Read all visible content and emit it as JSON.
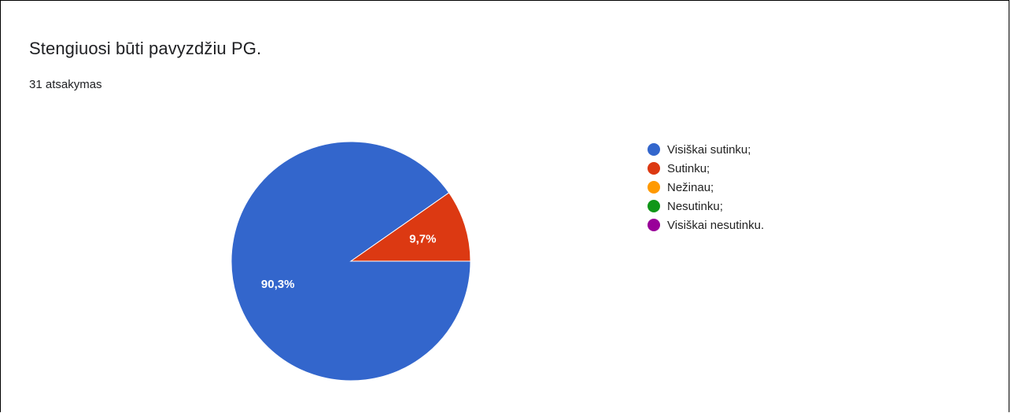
{
  "question": {
    "title": "Stengiuosi būti pavyzdžiu PG.",
    "responses": "31 atsakymas"
  },
  "chart_data": {
    "type": "pie",
    "title": "Stengiuosi būti pavyzdžiu PG.",
    "slices": [
      {
        "label": "Visiškai sutinku;",
        "percent": 90.3,
        "display": "90,3%",
        "color": "#3366cc"
      },
      {
        "label": "Sutinku;",
        "percent": 9.7,
        "display": "9,7%",
        "color": "#dc3912"
      },
      {
        "label": "Nežinau;",
        "percent": 0,
        "display": "",
        "color": "#ff9900"
      },
      {
        "label": "Nesutinku;",
        "percent": 0,
        "display": "",
        "color": "#109618"
      },
      {
        "label": "Visiškai nesutinku.",
        "percent": 0,
        "display": "",
        "color": "#990099"
      }
    ],
    "legend_position": "right"
  }
}
